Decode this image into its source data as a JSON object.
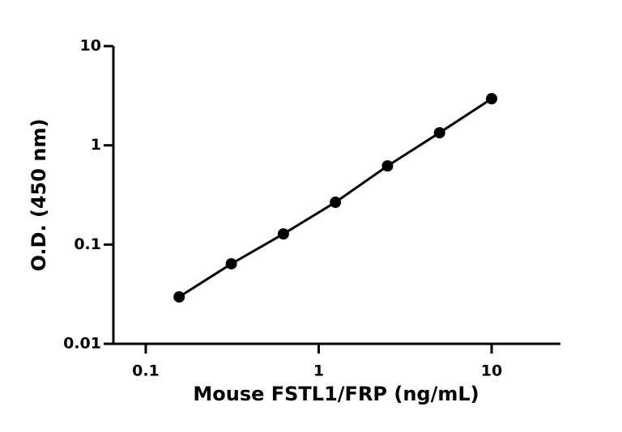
{
  "chart_data": {
    "type": "scatter",
    "line": true,
    "x_label": "Mouse FSTL1/FRP (ng/mL)",
    "y_label": "O.D. (450 nm)",
    "x": [
      0.156,
      0.3125,
      0.625,
      1.25,
      2.5,
      5,
      10
    ],
    "series": [
      {
        "color": "#000000",
        "values": [
          0.0297,
          0.064,
          0.128,
          0.267,
          0.62,
          1.34,
          2.95
        ]
      }
    ],
    "xlog": true,
    "ylog": true,
    "xlim": [
      0.065,
      25
    ],
    "ylim": [
      0.01,
      10
    ],
    "xticks": [
      0.1,
      1,
      10
    ],
    "yticks": [
      0.01,
      0.1,
      1,
      10
    ]
  }
}
